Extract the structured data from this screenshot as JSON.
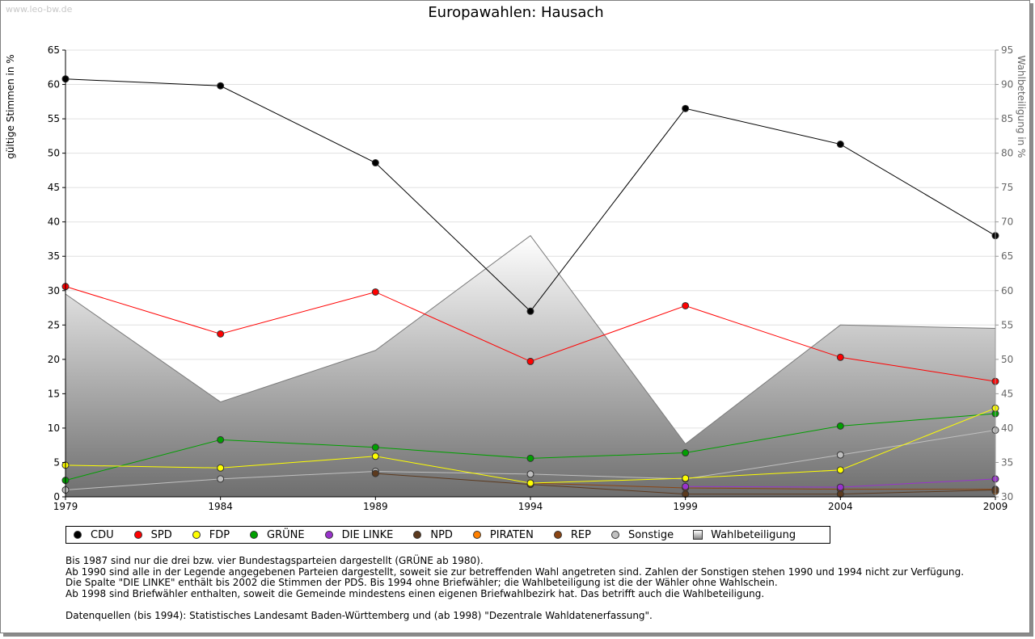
{
  "watermark": "www.leo-bw.de",
  "chart_data": {
    "type": "line",
    "title": "Europawahlen: Hausach",
    "ylabel": "gültige Stimmen in %",
    "y2label": "Wahlbeteiligung in %",
    "x": [
      "1979",
      "1984",
      "1989",
      "1994",
      "1999",
      "2004",
      "2009"
    ],
    "ylim": [
      0,
      65
    ],
    "y2lim": [
      30,
      95
    ],
    "yticks": [
      "0",
      "5",
      "10",
      "15",
      "20",
      "25",
      "30",
      "35",
      "40",
      "45",
      "50",
      "55",
      "60",
      "65"
    ],
    "y2ticks": [
      "30",
      "35",
      "40",
      "45",
      "50",
      "55",
      "60",
      "65",
      "70",
      "75",
      "80",
      "85",
      "90",
      "95"
    ],
    "grid": true,
    "legend_position": "bottom",
    "series": [
      {
        "name": "CDU",
        "color": "#000000",
        "values": [
          60.8,
          59.8,
          48.6,
          27.0,
          56.5,
          51.3,
          38.0
        ]
      },
      {
        "name": "SPD",
        "color": "#ff0000",
        "values": [
          30.6,
          23.7,
          29.8,
          19.7,
          27.8,
          20.3,
          16.8
        ]
      },
      {
        "name": "FDP",
        "color": "#ffff00",
        "values": [
          4.6,
          4.2,
          5.9,
          2.0,
          2.7,
          3.9,
          12.9
        ]
      },
      {
        "name": "GRÜNE",
        "color": "#00a000",
        "values": [
          2.4,
          8.3,
          7.2,
          5.6,
          6.4,
          10.3,
          12.1
        ]
      },
      {
        "name": "DIE LINKE",
        "color": "#9933cc",
        "values": [
          null,
          null,
          null,
          null,
          1.5,
          1.4,
          2.6
        ]
      },
      {
        "name": "NPD",
        "color": "#5c3a1e",
        "values": [
          null,
          null,
          3.4,
          1.8,
          0.4,
          0.4,
          1.0
        ]
      },
      {
        "name": "PIRATEN",
        "color": "#ff8000",
        "values": [
          null,
          null,
          null,
          null,
          null,
          null,
          0.8
        ]
      },
      {
        "name": "REP",
        "color": "#8b4513",
        "values": [
          null,
          null,
          null,
          2.0,
          1.3,
          1.1,
          1.1
        ]
      },
      {
        "name": "Sonstige",
        "color": "#c0c0c0",
        "values": [
          1.0,
          2.6,
          3.7,
          3.3,
          2.6,
          6.1,
          9.7
        ]
      },
      {
        "name": "Wahlbeteiligung",
        "color": "#808080",
        "axis": "right",
        "type": "area",
        "values": [
          59.5,
          43.8,
          51.3,
          68.0,
          37.7,
          55.0,
          54.5
        ]
      }
    ]
  },
  "notes": [
    "Bis 1987 sind nur die drei bzw. vier Bundestagsparteien dargestellt (GRÜNE ab 1980).",
    "Ab 1990 sind alle in der Legende angegebenen Parteien dargestellt, soweit sie zur betreffenden Wahl angetreten sind. Zahlen der Sonstigen stehen 1990 und 1994 nicht zur Verfügung.",
    "Die Spalte \"DIE LINKE\" enthält bis 2002 die Stimmen der PDS. Bis 1994 ohne Briefwähler; die Wahlbeteiligung ist die der Wähler ohne Wahlschein.",
    "Ab 1998 sind Briefwähler enthalten, soweit die Gemeinde mindestens einen eigenen Briefwahlbezirk hat. Das betrifft auch die Wahlbeteiligung.",
    "",
    "Datenquellen (bis 1994): Statistisches Landesamt Baden-Württemberg und (ab 1998) \"Dezentrale Wahldatenerfassung\"."
  ]
}
